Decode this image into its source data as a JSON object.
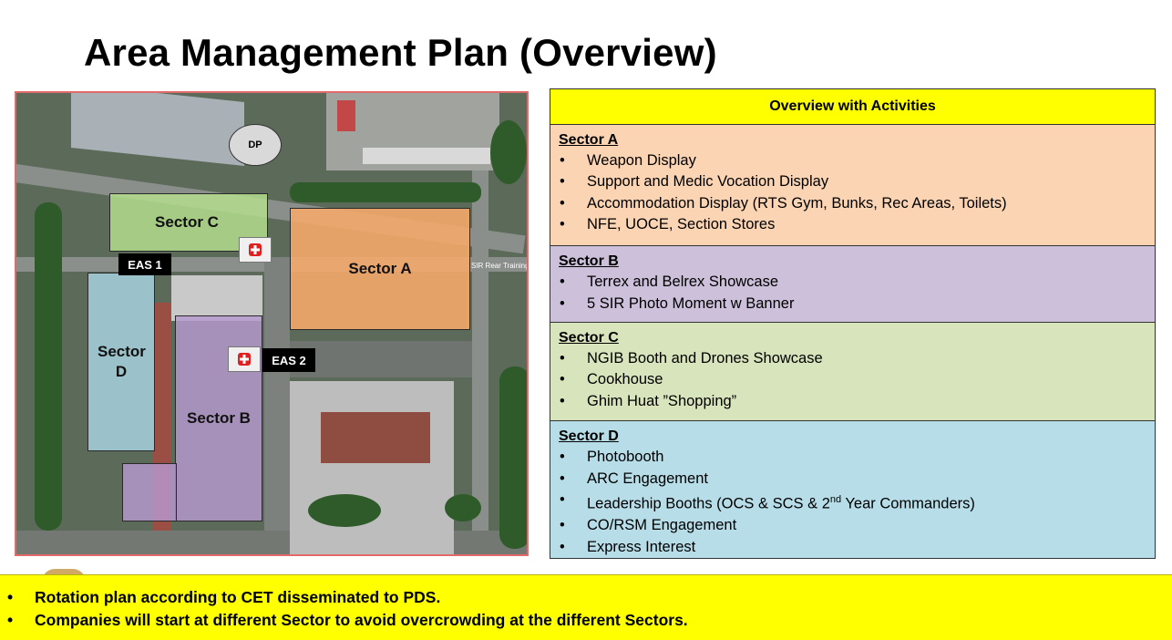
{
  "page": {
    "title": "Area Management Plan (Overview)"
  },
  "map": {
    "sectors": {
      "a": "Sector A",
      "b": "Sector B",
      "c": "Sector C",
      "d": "Sector D"
    },
    "markers": {
      "dp": "DP",
      "eas1": "EAS 1",
      "eas2": "EAS 2"
    },
    "place_label": "SIR Rear Training",
    "colors": {
      "sector_a": "#f3a86a",
      "sector_b": "#b79ad0",
      "sector_c": "#b6e08f",
      "sector_d": "#a9d6e3",
      "medic_cross": "#e02020"
    }
  },
  "overview_table": {
    "header": "Overview with Activities",
    "sections": [
      {
        "title": "Sector A",
        "color": "#fbd4b4",
        "items": [
          "Weapon Display",
          "Support and Medic Vocation Display",
          "Accommodation Display (RTS Gym, Bunks, Rec Areas, Toilets)",
          "NFE, UOCE, Section Stores"
        ]
      },
      {
        "title": "Sector B",
        "color": "#ccc0da",
        "items": [
          "Terrex and Belrex Showcase",
          "5 SIR Photo Moment w Banner"
        ]
      },
      {
        "title": "Sector C",
        "color": "#d7e4bc",
        "items": [
          "NGIB Booth and Drones Showcase",
          "Cookhouse",
          "Ghim Huat ”Shopping”"
        ]
      },
      {
        "title": "Sector D",
        "color": "#b7dde8",
        "items": [
          "Photobooth",
          "ARC Engagement",
          "Leadership Booths (OCS & SCS & 2",
          "CO/RSM Engagement",
          "Express Interest"
        ],
        "leadership_sup": "nd",
        "leadership_tail": " Year Commanders)"
      }
    ]
  },
  "notes": [
    "Rotation plan according to CET disseminated to PDS.",
    "Companies will start at different Sector to avoid overcrowding at the different Sectors."
  ]
}
